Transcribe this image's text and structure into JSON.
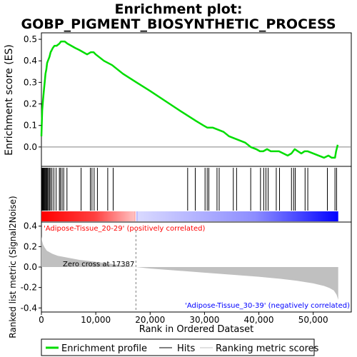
{
  "chart_data": {
    "type": "line",
    "title_line1": "Enrichment plot:",
    "title_line2": "GOBP_PIGMENT_BIOSYNTHETIC_PROCESS",
    "top_panel": {
      "ylabel": "Enrichment score (ES)",
      "ylim": [
        -0.09,
        0.53
      ],
      "yticks": [
        0.0,
        0.1,
        0.2,
        0.3,
        0.4,
        0.5
      ],
      "ytick_labels": [
        "0.0",
        "0.1",
        "0.2",
        "0.3",
        "0.4",
        "0.5"
      ],
      "series": [
        {
          "name": "Enrichment profile",
          "color": "#00dd00",
          "x": [
            0,
            150,
            300,
            450,
            600,
            750,
            900,
            1050,
            1200,
            1350,
            1500,
            1700,
            1900,
            2100,
            2400,
            2800,
            3300,
            3600,
            3900,
            4300,
            4800,
            5500,
            6200,
            7000,
            7700,
            8400,
            9100,
            9600,
            10000,
            10500,
            11500,
            13000,
            15000,
            17500,
            20000,
            23000,
            26000,
            28500,
            29800,
            30500,
            31500,
            32500,
            33500,
            34500,
            35500,
            36500,
            37500,
            38500,
            39500,
            40200,
            40800,
            41500,
            42200,
            43000,
            43700,
            44500,
            45300,
            46000,
            46600,
            47200,
            47800,
            48400,
            49000,
            50000,
            51000,
            52000,
            52800,
            53400,
            54000,
            54200,
            54500
          ],
          "y": [
            0.05,
            0.17,
            0.22,
            0.26,
            0.3,
            0.34,
            0.36,
            0.39,
            0.4,
            0.41,
            0.42,
            0.44,
            0.45,
            0.46,
            0.47,
            0.47,
            0.48,
            0.49,
            0.49,
            0.49,
            0.48,
            0.47,
            0.46,
            0.45,
            0.44,
            0.43,
            0.44,
            0.44,
            0.43,
            0.42,
            0.4,
            0.38,
            0.34,
            0.3,
            0.26,
            0.21,
            0.16,
            0.12,
            0.1,
            0.09,
            0.09,
            0.08,
            0.07,
            0.05,
            0.04,
            0.03,
            0.02,
            0.0,
            -0.01,
            -0.02,
            -0.02,
            -0.01,
            -0.02,
            -0.02,
            -0.02,
            -0.03,
            -0.04,
            -0.03,
            -0.01,
            -0.02,
            -0.03,
            -0.02,
            -0.02,
            -0.03,
            -0.04,
            -0.05,
            -0.04,
            -0.05,
            -0.05,
            -0.02,
            0.01
          ]
        }
      ]
    },
    "hits_panel": {
      "hits_color": "#000000",
      "hit_positions": [
        80,
        150,
        260,
        380,
        500,
        620,
        750,
        880,
        1000,
        1150,
        1300,
        1500,
        1700,
        1950,
        2300,
        2700,
        3300,
        3500,
        3800,
        4100,
        4700,
        7300,
        9000,
        9300,
        9700,
        10300,
        12200,
        13200,
        26900,
        28300,
        30100,
        30500,
        30800,
        32300,
        32700,
        35300,
        35900,
        38500,
        40300,
        40900,
        41300,
        41700,
        43200,
        43800,
        46000,
        46400,
        46700,
        48500,
        49000,
        52600,
        54000,
        54300
      ],
      "color_bar": {
        "positive_color": "#ff0000",
        "mid_color": "#ffffff",
        "negative_color": "#0000ff"
      }
    },
    "bottom_panel": {
      "ylabel": "Ranked list metric (Signal2Noise)",
      "ylim": [
        -0.44,
        0.44
      ],
      "yticks": [
        -0.4,
        -0.2,
        0.0,
        0.2,
        0.4
      ],
      "ytick_labels": [
        "-0.4",
        "-0.2",
        "0.0",
        "0.2",
        "0.4"
      ],
      "fill_color": "#c0c0c0",
      "metric_x": [
        0,
        100,
        300,
        600,
        1000,
        2000,
        3000,
        5000,
        7000,
        10000,
        13000,
        15000,
        17387,
        20000,
        25000,
        30000,
        35000,
        40000,
        44000,
        47000,
        50000,
        52000,
        53000,
        53800,
        54300,
        54600
      ],
      "metric_y": [
        0.3,
        0.26,
        0.22,
        0.19,
        0.16,
        0.13,
        0.11,
        0.09,
        0.07,
        0.05,
        0.03,
        0.015,
        0.0,
        -0.015,
        -0.035,
        -0.055,
        -0.075,
        -0.095,
        -0.115,
        -0.135,
        -0.16,
        -0.185,
        -0.205,
        -0.23,
        -0.27,
        -0.32
      ],
      "zero_cross_label": "Zero cross at 17387",
      "zero_cross": 17387,
      "positive_label": "'Adipose-Tissue_20-29' (positively correlated)",
      "positive_label_color": "#ff0000",
      "negative_label": "'Adipose-Tissue_30-39' (negatively correlated)",
      "negative_label_color": "#0000ff"
    },
    "xlabel": "Rank in Ordered Dataset",
    "xlim": [
      0,
      57000
    ],
    "n_genes": 54600,
    "xticks": [
      0,
      10000,
      20000,
      30000,
      40000,
      50000
    ],
    "xtick_labels": [
      "0",
      "10,000",
      "20,000",
      "30,000",
      "40,000",
      "50,000"
    ],
    "legend": {
      "placement": "bottom",
      "items": [
        {
          "label": "Enrichment profile",
          "color": "#00dd00",
          "kind": "thick-line"
        },
        {
          "label": "Hits",
          "color": "#000000",
          "kind": "line"
        },
        {
          "label": "Ranking metric scores",
          "color": "#c0c0c0",
          "kind": "line"
        }
      ]
    }
  }
}
